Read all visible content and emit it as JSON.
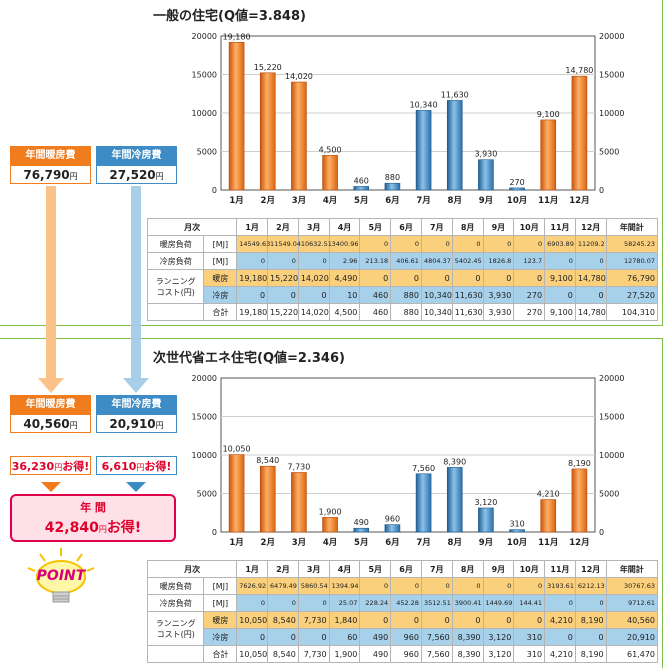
{
  "colors": {
    "heat": "#f07c1e",
    "cool": "#3e8cc5",
    "heat_row": "#fbd07c",
    "cool_row": "#a7d0ea",
    "saving": "#e0002a"
  },
  "chart_data": [
    {
      "type": "bar",
      "title": "一般の住宅(Q値=3.848)",
      "categories": [
        "1月",
        "2月",
        "3月",
        "4月",
        "5月",
        "6月",
        "7月",
        "8月",
        "9月",
        "10月",
        "11月",
        "12月"
      ],
      "values": [
        19180,
        15220,
        14020,
        4500,
        460,
        880,
        10340,
        11630,
        3930,
        270,
        9100,
        14780
      ],
      "value_labels": [
        "19,180",
        "15,220",
        "14,020",
        "4,500",
        "460",
        "880",
        "10,340",
        "11,630",
        "3,930",
        "270",
        "9,100",
        "14,780"
      ],
      "bar_kind": [
        "heat",
        "heat",
        "heat",
        "heat",
        "cool",
        "cool",
        "cool",
        "cool",
        "cool",
        "cool",
        "heat",
        "heat"
      ],
      "ylim": [
        0,
        20000
      ],
      "yticks": [
        "0",
        "5000",
        "10000",
        "15000",
        "20000"
      ],
      "table": {
        "headers": [
          "月次",
          "1月",
          "2月",
          "3月",
          "4月",
          "5月",
          "6月",
          "7月",
          "8月",
          "9月",
          "10月",
          "11月",
          "12月",
          "年間計"
        ],
        "heat_load_label": "暖房負荷",
        "cool_load_label": "冷房負荷",
        "mj_unit": "[MJ]",
        "running_label_1": "ランニング",
        "running_label_2": "コスト(円)",
        "heat_sub": "暖房",
        "cool_sub": "冷房",
        "total_label": "合計",
        "heat_load": [
          "14549.63",
          "11549.04",
          "10632.51",
          "3400.96",
          "0",
          "0",
          "0",
          "0",
          "0",
          "0",
          "6903.89",
          "11209.2",
          "58245.23"
        ],
        "cool_load": [
          "0",
          "0",
          "0",
          "2.96",
          "213.18",
          "406.61",
          "4804.37",
          "5402.45",
          "1826.8",
          "123.7",
          "0",
          "0",
          "12780.07"
        ],
        "heat_cost": [
          "19,180",
          "15,220",
          "14,020",
          "4,490",
          "0",
          "0",
          "0",
          "0",
          "0",
          "0",
          "9,100",
          "14,780",
          "76,790"
        ],
        "cool_cost": [
          "0",
          "0",
          "0",
          "10",
          "460",
          "880",
          "10,340",
          "11,630",
          "3,930",
          "270",
          "0",
          "0",
          "27,520"
        ],
        "total_cost": [
          "19,180",
          "15,220",
          "14,020",
          "4,500",
          "460",
          "880",
          "10,340",
          "11,630",
          "3,930",
          "270",
          "9,100",
          "14,780",
          "104,310"
        ]
      }
    },
    {
      "type": "bar",
      "title": "次世代省エネ住宅(Q値=2.346)",
      "categories": [
        "1月",
        "2月",
        "3月",
        "4月",
        "5月",
        "6月",
        "7月",
        "8月",
        "9月",
        "10月",
        "11月",
        "12月"
      ],
      "values": [
        10050,
        8540,
        7730,
        1900,
        490,
        960,
        7560,
        8390,
        3120,
        310,
        4210,
        8190
      ],
      "value_labels": [
        "10,050",
        "8,540",
        "7,730",
        "1,900",
        "490",
        "960",
        "7,560",
        "8,390",
        "3,120",
        "310",
        "4,210",
        "8,190"
      ],
      "bar_kind": [
        "heat",
        "heat",
        "heat",
        "heat",
        "cool",
        "cool",
        "cool",
        "cool",
        "cool",
        "cool",
        "heat",
        "heat"
      ],
      "ylim": [
        0,
        20000
      ],
      "yticks": [
        "0",
        "5000",
        "10000",
        "15000",
        "20000"
      ],
      "table": {
        "headers": [
          "月次",
          "1月",
          "2月",
          "3月",
          "4月",
          "5月",
          "6月",
          "7月",
          "8月",
          "9月",
          "10月",
          "11月",
          "12月",
          "年間計"
        ],
        "heat_load_label": "暖房負荷",
        "cool_load_label": "冷房負荷",
        "mj_unit": "[MJ]",
        "running_label_1": "ランニング",
        "running_label_2": "コスト(円)",
        "heat_sub": "暖房",
        "cool_sub": "冷房",
        "total_label": "合計",
        "heat_load": [
          "7626.92",
          "6479.49",
          "5860.54",
          "1394.94",
          "0",
          "0",
          "0",
          "0",
          "0",
          "0",
          "3193.61",
          "6212.13",
          "30767.63"
        ],
        "cool_load": [
          "0",
          "0",
          "0",
          "25.07",
          "228.24",
          "452.28",
          "3512.51",
          "3900.41",
          "1449.69",
          "144.41",
          "0",
          "0",
          "9712.61"
        ],
        "heat_cost": [
          "10,050",
          "8,540",
          "7,730",
          "1,840",
          "0",
          "0",
          "0",
          "0",
          "0",
          "0",
          "4,210",
          "8,190",
          "40,560"
        ],
        "cool_cost": [
          "0",
          "0",
          "0",
          "60",
          "490",
          "960",
          "7,560",
          "8,390",
          "3,120",
          "310",
          "0",
          "0",
          "20,910"
        ],
        "total_cost": [
          "10,050",
          "8,540",
          "7,730",
          "1,900",
          "490",
          "960",
          "7,560",
          "8,390",
          "3,120",
          "310",
          "4,210",
          "8,190",
          "61,470"
        ]
      }
    }
  ],
  "summary": {
    "heat_label": "年間暖房費",
    "cool_label": "年間冷房費",
    "yen": "円",
    "house1_heat": "76,790",
    "house1_cool": "27,520",
    "house2_heat": "40,560",
    "house2_cool": "20,910",
    "save_heat": "36,230",
    "save_cool": "6,610",
    "save_suffix": "お得!",
    "annual_label": "年 間",
    "save_total": "42,840",
    "point_label": "POINT"
  }
}
